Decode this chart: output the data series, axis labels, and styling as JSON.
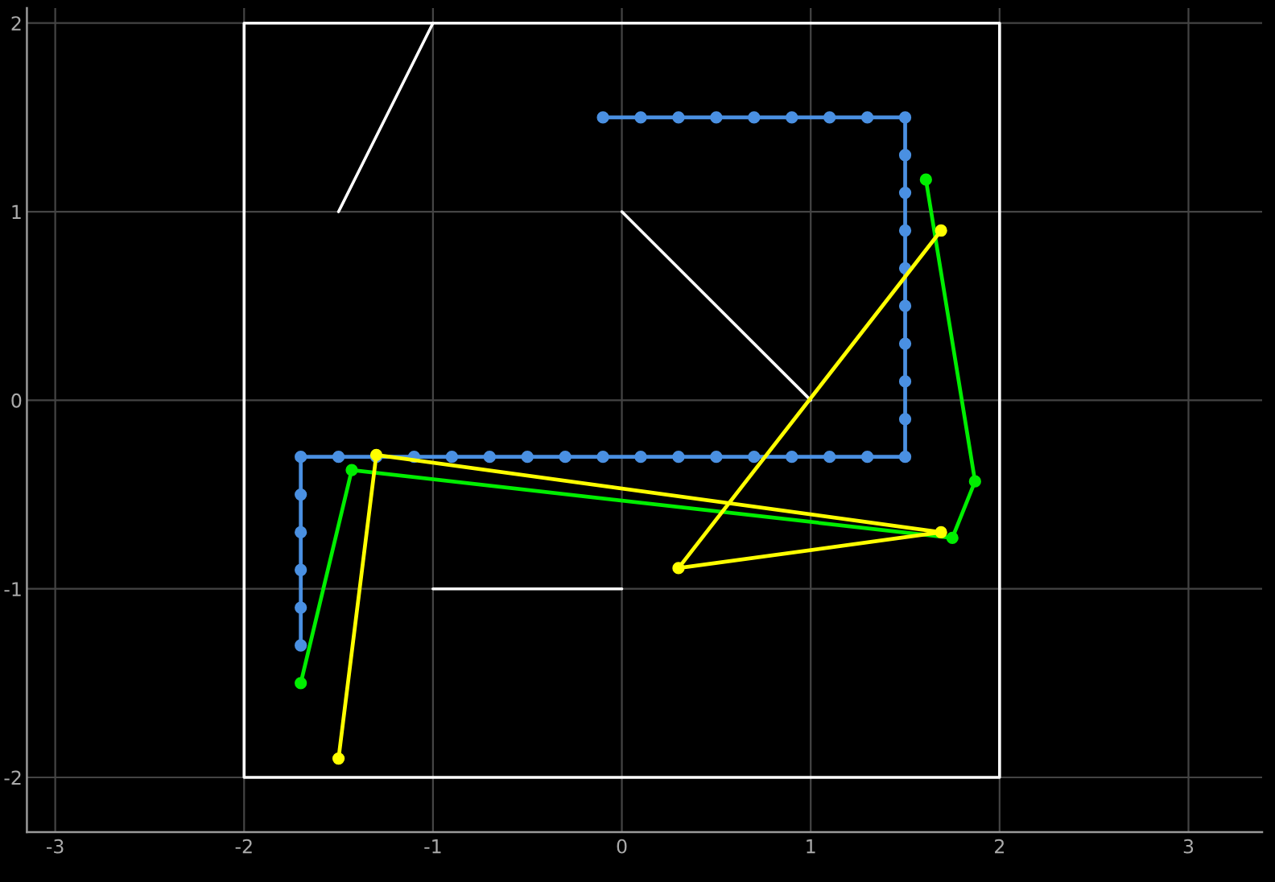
{
  "chart_data": {
    "type": "line",
    "xlim": [
      -3.15,
      3.39
    ],
    "ylim": [
      -2.29,
      2.08
    ],
    "xticks": [
      -3,
      -2,
      -1,
      0,
      1,
      2,
      3
    ],
    "yticks": [
      -2,
      -1,
      0,
      1,
      2
    ],
    "grid": true,
    "line_style": "solid",
    "series": [
      {
        "color": "#ffffff",
        "marker": "none",
        "x": [
          -2,
          2,
          2,
          -2,
          -2,
          2
        ],
        "values": [
          -2,
          -2,
          2,
          2,
          -2,
          -2
        ]
      },
      {
        "color": "#ffffff",
        "marker": "none",
        "x": [
          -1.5,
          -1
        ],
        "values": [
          1,
          2
        ]
      },
      {
        "color": "#ffffff",
        "marker": "none",
        "x": [
          0,
          1
        ],
        "values": [
          1,
          0
        ]
      },
      {
        "color": "#ffffff",
        "marker": "none",
        "x": [
          -1,
          0
        ],
        "values": [
          -1,
          -1
        ]
      },
      {
        "color": "#4a90e2",
        "marker": "circle",
        "x": [
          -0.1,
          0.1,
          0.3,
          0.5,
          0.7,
          0.9,
          1.1,
          1.3,
          1.5,
          1.5,
          1.5,
          1.5,
          1.5,
          1.5,
          1.5,
          1.5,
          1.5,
          1.5,
          1.3,
          1.1,
          0.9,
          0.7,
          0.5,
          0.3,
          0.1,
          -0.1,
          -0.3,
          -0.5,
          -0.7,
          -0.9,
          -1.1,
          -1.3,
          -1.5,
          -1.7,
          -1.7,
          -1.7,
          -1.7,
          -1.7,
          -1.7
        ],
        "values": [
          1.5,
          1.5,
          1.5,
          1.5,
          1.5,
          1.5,
          1.5,
          1.5,
          1.5,
          1.3,
          1.1,
          0.9,
          0.7,
          0.5,
          0.3,
          0.1,
          -0.1,
          -0.3,
          -0.3,
          -0.3,
          -0.3,
          -0.3,
          -0.3,
          -0.3,
          -0.3,
          -0.3,
          -0.3,
          -0.3,
          -0.3,
          -0.3,
          -0.3,
          -0.3,
          -0.3,
          -0.3,
          -0.5,
          -0.7,
          -0.9,
          -1.1,
          -1.3
        ]
      },
      {
        "color": "#00ee00",
        "marker": "circle",
        "x": [
          1.61,
          1.87,
          1.75,
          -1.43,
          -1.7
        ],
        "values": [
          1.17,
          -0.43,
          -0.73,
          -0.37,
          -1.5
        ]
      },
      {
        "color": "#ffff00",
        "marker": "circle",
        "x": [
          1.69,
          0.3,
          1.69,
          -1.3,
          -1.5
        ],
        "values": [
          0.9,
          -0.89,
          -0.7,
          -0.29,
          -1.9
        ]
      }
    ]
  }
}
